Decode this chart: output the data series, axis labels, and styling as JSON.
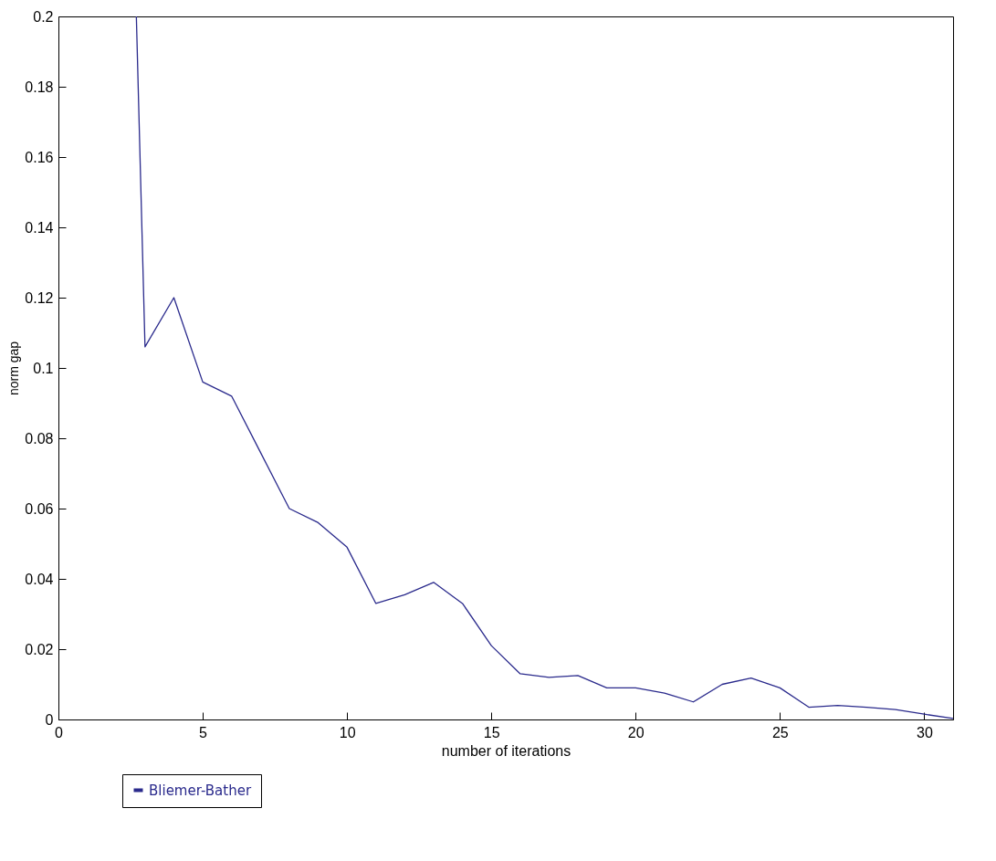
{
  "chart_data": {
    "type": "line",
    "xlabel": "number of iterations",
    "ylabel": "norm gap",
    "x": [
      2.7,
      3,
      4,
      5,
      6,
      7,
      8,
      9,
      10,
      11,
      12,
      13,
      14,
      15,
      16,
      17,
      18,
      19,
      20,
      21,
      22,
      23,
      24,
      25,
      26,
      27,
      28,
      29,
      30,
      31
    ],
    "series": [
      {
        "name": "Bliemer-Bather",
        "color": "#2a2a8c",
        "values": [
          0.2,
          0.106,
          0.12,
          0.096,
          0.092,
          0.076,
          0.06,
          0.056,
          0.049,
          0.033,
          0.0355,
          0.039,
          0.033,
          0.021,
          0.013,
          0.012,
          0.0125,
          0.009,
          0.009,
          0.0075,
          0.005,
          0.01,
          0.0118,
          0.009,
          0.0035,
          0.004,
          0.0035,
          0.0028,
          0.0015,
          0.0003
        ]
      }
    ],
    "xlim": [
      0,
      31
    ],
    "ylim": [
      0,
      0.2
    ],
    "xticks": [
      0,
      5,
      10,
      15,
      20,
      25,
      30
    ],
    "yticks": [
      0,
      0.02,
      0.04,
      0.06,
      0.08,
      0.1,
      0.12,
      0.14,
      0.16,
      0.18,
      0.2
    ],
    "grid": false,
    "legend": "bottom left",
    "marker": "none",
    "line_style": "solid"
  }
}
